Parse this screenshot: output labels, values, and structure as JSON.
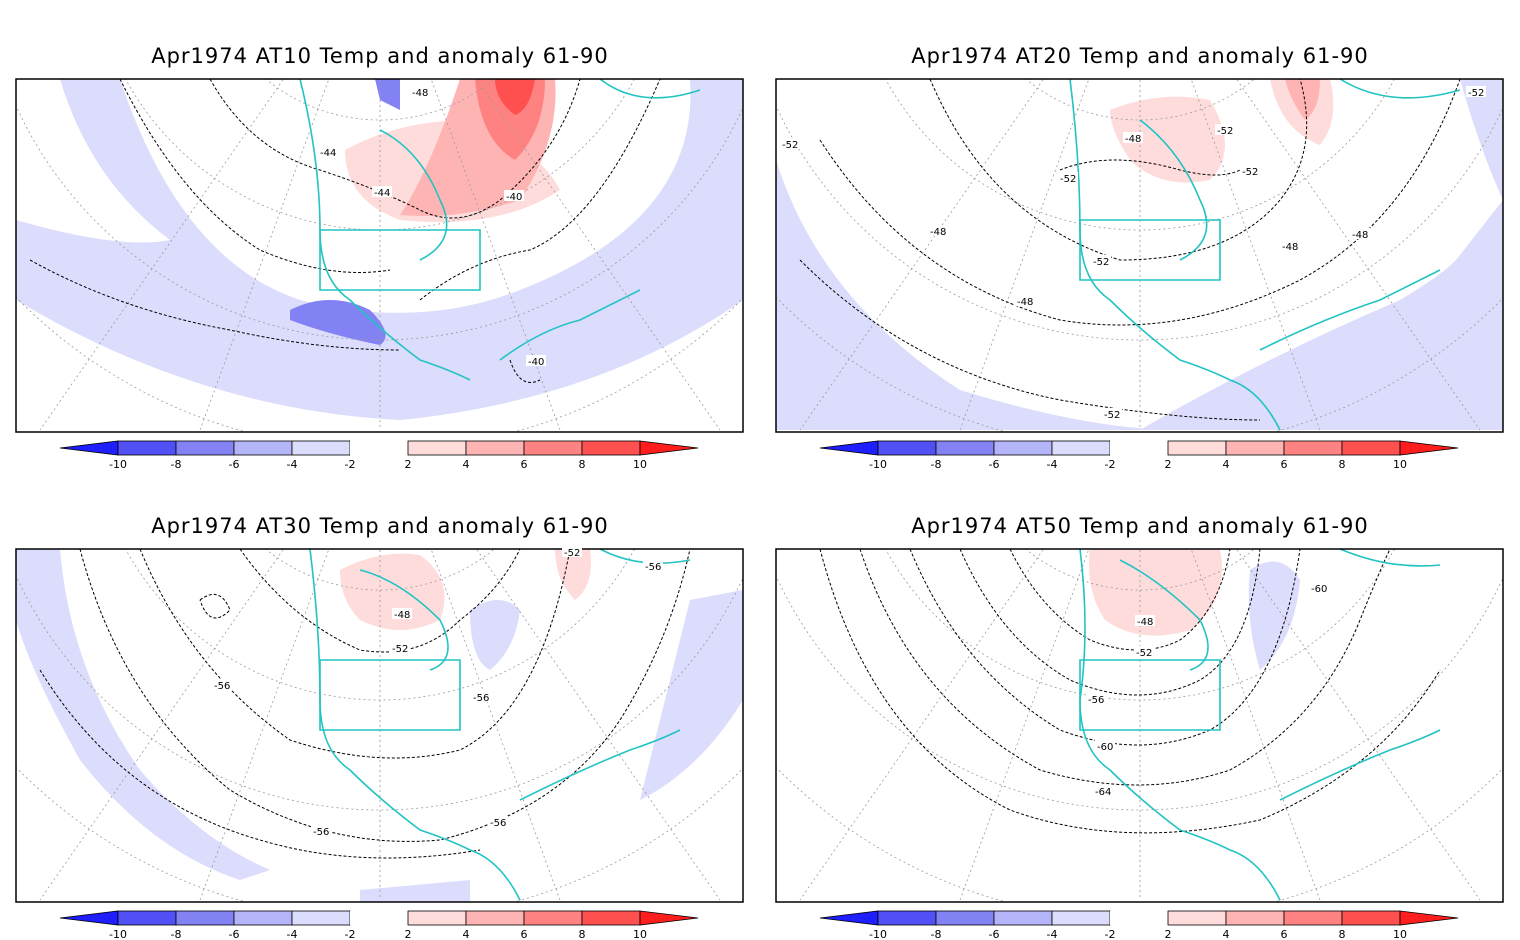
{
  "colorbar": {
    "ticks": [
      "-10",
      "-8",
      "-6",
      "-4",
      "-2",
      "2",
      "4",
      "6",
      "8",
      "10"
    ],
    "colors_neg": [
      "#1e1eff",
      "#5050f5",
      "#8282f5",
      "#b4b4f8",
      "#dcdcfc"
    ],
    "colors_pos": [
      "#ffdcdc",
      "#ffb4b4",
      "#ff8282",
      "#ff5050",
      "#ff1e1e"
    ]
  },
  "colors": {
    "coast": "#22c3c3",
    "contour": "#000000",
    "grid": "#9a9a9a"
  },
  "panels": [
    {
      "title": "Apr1974 AT10 Temp and anomaly 61-90",
      "labels": [
        "-48",
        "-44",
        "-44",
        "-40",
        "-40"
      ]
    },
    {
      "title": "Apr1974 AT20 Temp and anomaly 61-90",
      "labels": [
        "-48",
        "-52",
        "-52",
        "-52",
        "-52",
        "-48",
        "-48",
        "-52",
        "-48",
        "-48",
        "-52",
        "-52"
      ]
    },
    {
      "title": "Apr1974 AT30 Temp and anomaly 61-90",
      "labels": [
        "-52",
        "-56",
        "-48",
        "-52",
        "-56",
        "-56",
        "-56",
        "-56"
      ]
    },
    {
      "title": "Apr1974 AT50 Temp and anomaly 61-90",
      "labels": [
        "-60",
        "-48",
        "-52",
        "-56",
        "-60",
        "-64"
      ]
    }
  ]
}
